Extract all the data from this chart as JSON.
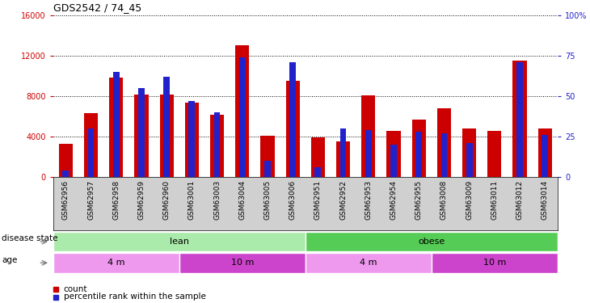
{
  "title": "GDS2542 / 74_45",
  "samples": [
    "GSM62956",
    "GSM62957",
    "GSM62958",
    "GSM62959",
    "GSM62960",
    "GSM63001",
    "GSM63003",
    "GSM63004",
    "GSM63005",
    "GSM63006",
    "GSM62951",
    "GSM62952",
    "GSM62953",
    "GSM62954",
    "GSM62955",
    "GSM63008",
    "GSM63009",
    "GSM63011",
    "GSM63012",
    "GSM63014"
  ],
  "counts": [
    3300,
    6300,
    9800,
    8200,
    8200,
    7400,
    6200,
    13000,
    4100,
    9500,
    3900,
    3500,
    8100,
    4600,
    5700,
    6800,
    4800,
    4600,
    11500,
    4800
  ],
  "percentiles": [
    4,
    30,
    65,
    55,
    62,
    47,
    40,
    74,
    10,
    71,
    6,
    30,
    29,
    20,
    28,
    27,
    21,
    0,
    71,
    26
  ],
  "bar_color": "#cc0000",
  "percentile_color": "#2222cc",
  "ylim_left": [
    0,
    16000
  ],
  "ylim_right": [
    0,
    100
  ],
  "yticks_left": [
    0,
    4000,
    8000,
    12000,
    16000
  ],
  "yticks_right": [
    0,
    25,
    50,
    75,
    100
  ],
  "disease_state_groups": [
    {
      "label": "lean",
      "start": 0,
      "end": 10,
      "color": "#aaeaaa"
    },
    {
      "label": "obese",
      "start": 10,
      "end": 20,
      "color": "#55cc55"
    }
  ],
  "age_groups": [
    {
      "label": "4 m",
      "start": 0,
      "end": 5,
      "color": "#ee99ee"
    },
    {
      "label": "10 m",
      "start": 5,
      "end": 10,
      "color": "#cc44cc"
    },
    {
      "label": "4 m",
      "start": 10,
      "end": 15,
      "color": "#ee99ee"
    },
    {
      "label": "10 m",
      "start": 15,
      "end": 20,
      "color": "#cc44cc"
    }
  ],
  "axis_color_left": "#cc0000",
  "axis_color_right": "#2222cc",
  "bar_width": 0.55,
  "percentile_bar_width": 0.25,
  "grid_color": "black",
  "bg_xtick": "#d0d0d0"
}
